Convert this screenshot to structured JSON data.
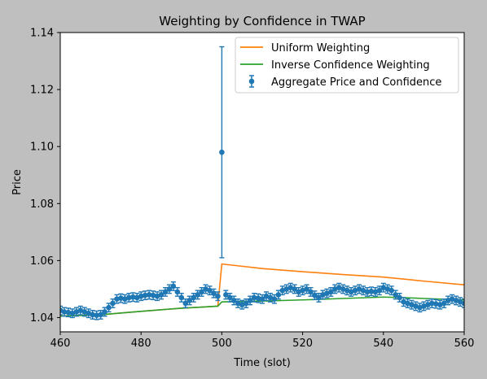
{
  "chart_data": {
    "type": "line",
    "title": "Weighting by Confidence in TWAP",
    "xlabel": "Time (slot)",
    "ylabel": "Price",
    "xlim": [
      460,
      560
    ],
    "ylim": [
      1.035,
      1.14
    ],
    "xticks": [
      460,
      480,
      500,
      520,
      540,
      560
    ],
    "yticks": [
      1.04,
      1.06,
      1.08,
      1.1,
      1.12,
      1.14
    ],
    "xtick_labels": [
      "460",
      "480",
      "500",
      "520",
      "540",
      "560"
    ],
    "ytick_labels": [
      "1.04",
      "1.06",
      "1.08",
      "1.10",
      "1.12",
      "1.14"
    ],
    "grid": false,
    "legend": {
      "position": "top-right",
      "entries": [
        "Uniform Weighting",
        "Inverse Confidence Weighting",
        "Aggregate Price and Confidence"
      ]
    },
    "series": [
      {
        "name": "Uniform Weighting",
        "color": "#ff7f0e",
        "x": [
          460,
          470,
          480,
          490,
          499,
          500,
          505,
          510,
          520,
          530,
          540,
          550,
          560
        ],
        "y": [
          1.0405,
          1.041,
          1.0422,
          1.0433,
          1.044,
          1.0588,
          1.058,
          1.0572,
          1.0561,
          1.0551,
          1.0542,
          1.0528,
          1.0515
        ]
      },
      {
        "name": "Inverse Confidence Weighting",
        "color": "#2ca02c",
        "x": [
          460,
          470,
          480,
          490,
          499,
          500,
          510,
          520,
          530,
          540,
          545,
          550,
          560
        ],
        "y": [
          1.0405,
          1.041,
          1.0422,
          1.0433,
          1.044,
          1.0455,
          1.0458,
          1.0462,
          1.0467,
          1.0472,
          1.047,
          1.0467,
          1.0462
        ]
      },
      {
        "name": "Aggregate Price and Confidence",
        "color": "#1f77b4",
        "type": "errorbar",
        "x": [
          460,
          461,
          462,
          463,
          464,
          465,
          466,
          467,
          468,
          469,
          470,
          471,
          472,
          473,
          474,
          475,
          476,
          477,
          478,
          479,
          480,
          481,
          482,
          483,
          484,
          485,
          486,
          487,
          488,
          489,
          490,
          491,
          492,
          493,
          494,
          495,
          496,
          497,
          498,
          499,
          500,
          501,
          502,
          503,
          504,
          505,
          506,
          507,
          508,
          509,
          510,
          511,
          512,
          513,
          514,
          515,
          516,
          517,
          518,
          519,
          520,
          521,
          522,
          523,
          524,
          525,
          526,
          527,
          528,
          529,
          530,
          531,
          532,
          533,
          534,
          535,
          536,
          537,
          538,
          539,
          540,
          541,
          542,
          543,
          544,
          545,
          546,
          547,
          548,
          549,
          550,
          551,
          552,
          553,
          554,
          555,
          556,
          557,
          558,
          559,
          560
        ],
        "y": [
          1.0425,
          1.042,
          1.0418,
          1.0415,
          1.042,
          1.0425,
          1.042,
          1.0415,
          1.041,
          1.0408,
          1.041,
          1.042,
          1.0435,
          1.045,
          1.0465,
          1.0468,
          1.0465,
          1.047,
          1.0472,
          1.047,
          1.0475,
          1.0478,
          1.048,
          1.0478,
          1.0475,
          1.048,
          1.049,
          1.05,
          1.051,
          1.049,
          1.047,
          1.045,
          1.046,
          1.047,
          1.048,
          1.049,
          1.05,
          1.0495,
          1.0485,
          1.0475,
          1.098,
          1.048,
          1.047,
          1.046,
          1.045,
          1.0445,
          1.045,
          1.046,
          1.047,
          1.0468,
          1.0465,
          1.0475,
          1.047,
          1.0465,
          1.048,
          1.0495,
          1.05,
          1.0505,
          1.05,
          1.049,
          1.0495,
          1.05,
          1.049,
          1.0478,
          1.047,
          1.048,
          1.0485,
          1.049,
          1.05,
          1.0505,
          1.05,
          1.0495,
          1.049,
          1.0495,
          1.05,
          1.0495,
          1.049,
          1.0492,
          1.049,
          1.0495,
          1.0505,
          1.05,
          1.0495,
          1.048,
          1.047,
          1.0455,
          1.045,
          1.0445,
          1.044,
          1.0435,
          1.044,
          1.0445,
          1.045,
          1.0448,
          1.0445,
          1.045,
          1.046,
          1.0465,
          1.046,
          1.0455,
          1.045
        ],
        "yerr": [
          0.0015,
          0.0015,
          0.0015,
          0.0015,
          0.0015,
          0.0015,
          0.0015,
          0.0015,
          0.0015,
          0.0015,
          0.0015,
          0.0015,
          0.0015,
          0.0015,
          0.0015,
          0.0015,
          0.0015,
          0.0015,
          0.0015,
          0.0015,
          0.0015,
          0.0015,
          0.0015,
          0.0015,
          0.0015,
          0.0015,
          0.0015,
          0.0015,
          0.0015,
          0.0015,
          0.0015,
          0.0015,
          0.0015,
          0.0015,
          0.0015,
          0.0015,
          0.0015,
          0.0015,
          0.0015,
          0.0015,
          0.037,
          0.0015,
          0.0015,
          0.0015,
          0.0015,
          0.0015,
          0.0015,
          0.0015,
          0.0015,
          0.0015,
          0.0015,
          0.0015,
          0.0015,
          0.0015,
          0.0015,
          0.0015,
          0.0015,
          0.0015,
          0.0015,
          0.0015,
          0.0015,
          0.0015,
          0.0015,
          0.0015,
          0.0015,
          0.0015,
          0.0015,
          0.0015,
          0.0015,
          0.0015,
          0.0015,
          0.0015,
          0.0015,
          0.0015,
          0.0015,
          0.0015,
          0.0015,
          0.0015,
          0.0015,
          0.0015,
          0.0015,
          0.0015,
          0.0015,
          0.0015,
          0.0015,
          0.0015,
          0.0015,
          0.0015,
          0.0015,
          0.0015,
          0.0015,
          0.0015,
          0.0015,
          0.0015,
          0.0015,
          0.0015,
          0.0015,
          0.0015,
          0.0015,
          0.0015,
          0.0015
        ]
      }
    ]
  }
}
